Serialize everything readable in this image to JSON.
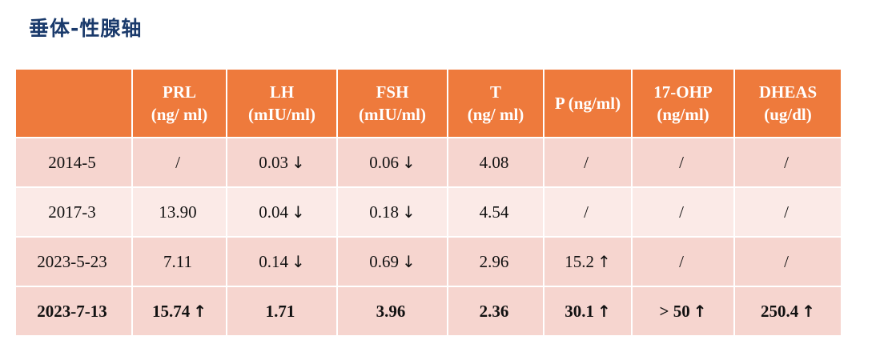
{
  "title": "垂体-性腺轴",
  "table": {
    "columns": [
      {
        "name": "",
        "unit": ""
      },
      {
        "name": "PRL",
        "unit": "(ng/ ml)"
      },
      {
        "name": "LH",
        "unit": "(mIU/ml)"
      },
      {
        "name": "FSH",
        "unit": "(mIU/ml)"
      },
      {
        "name": "T",
        "unit": "(ng/ ml)"
      },
      {
        "name": "P (ng/ml)",
        "unit": ""
      },
      {
        "name": "17-OHP",
        "unit": "(ng/ml)"
      },
      {
        "name": "DHEAS",
        "unit": "(ug/dl)"
      }
    ],
    "rows": [
      {
        "cells": [
          {
            "value": "2014-5",
            "arrow": ""
          },
          {
            "value": "/",
            "arrow": ""
          },
          {
            "value": "0.03",
            "arrow": "↓"
          },
          {
            "value": "0.06",
            "arrow": "↓"
          },
          {
            "value": "4.08",
            "arrow": ""
          },
          {
            "value": "/",
            "arrow": ""
          },
          {
            "value": "/",
            "arrow": ""
          },
          {
            "value": "/",
            "arrow": ""
          }
        ]
      },
      {
        "cells": [
          {
            "value": "2017-3",
            "arrow": ""
          },
          {
            "value": "13.90",
            "arrow": ""
          },
          {
            "value": "0.04",
            "arrow": "↓"
          },
          {
            "value": "0.18",
            "arrow": "↓"
          },
          {
            "value": "4.54",
            "arrow": ""
          },
          {
            "value": "/",
            "arrow": ""
          },
          {
            "value": "/",
            "arrow": ""
          },
          {
            "value": "/",
            "arrow": ""
          }
        ]
      },
      {
        "cells": [
          {
            "value": "2023-5-23",
            "arrow": ""
          },
          {
            "value": "7.11",
            "arrow": ""
          },
          {
            "value": "0.14",
            "arrow": "↓"
          },
          {
            "value": "0.69",
            "arrow": "↓"
          },
          {
            "value": "2.96",
            "arrow": ""
          },
          {
            "value": "15.2",
            "arrow": "↑"
          },
          {
            "value": "/",
            "arrow": ""
          },
          {
            "value": "/",
            "arrow": ""
          }
        ]
      },
      {
        "cells": [
          {
            "value": "2023-7-13",
            "arrow": ""
          },
          {
            "value": "15.74",
            "arrow": "↑"
          },
          {
            "value": "1.71",
            "arrow": ""
          },
          {
            "value": "3.96",
            "arrow": ""
          },
          {
            "value": "2.36",
            "arrow": ""
          },
          {
            "value": "30.1",
            "arrow": "↑"
          },
          {
            "value": "> 50",
            "arrow": "↑"
          },
          {
            "value": "250.4",
            "arrow": "↑"
          }
        ]
      }
    ]
  },
  "colors": {
    "title": "#1a3a6b",
    "header_bg": "#ee7a3c",
    "row_odd": "#f6d5cf",
    "row_even": "#fbeae7",
    "highlight_text": "#9c1a1a"
  }
}
